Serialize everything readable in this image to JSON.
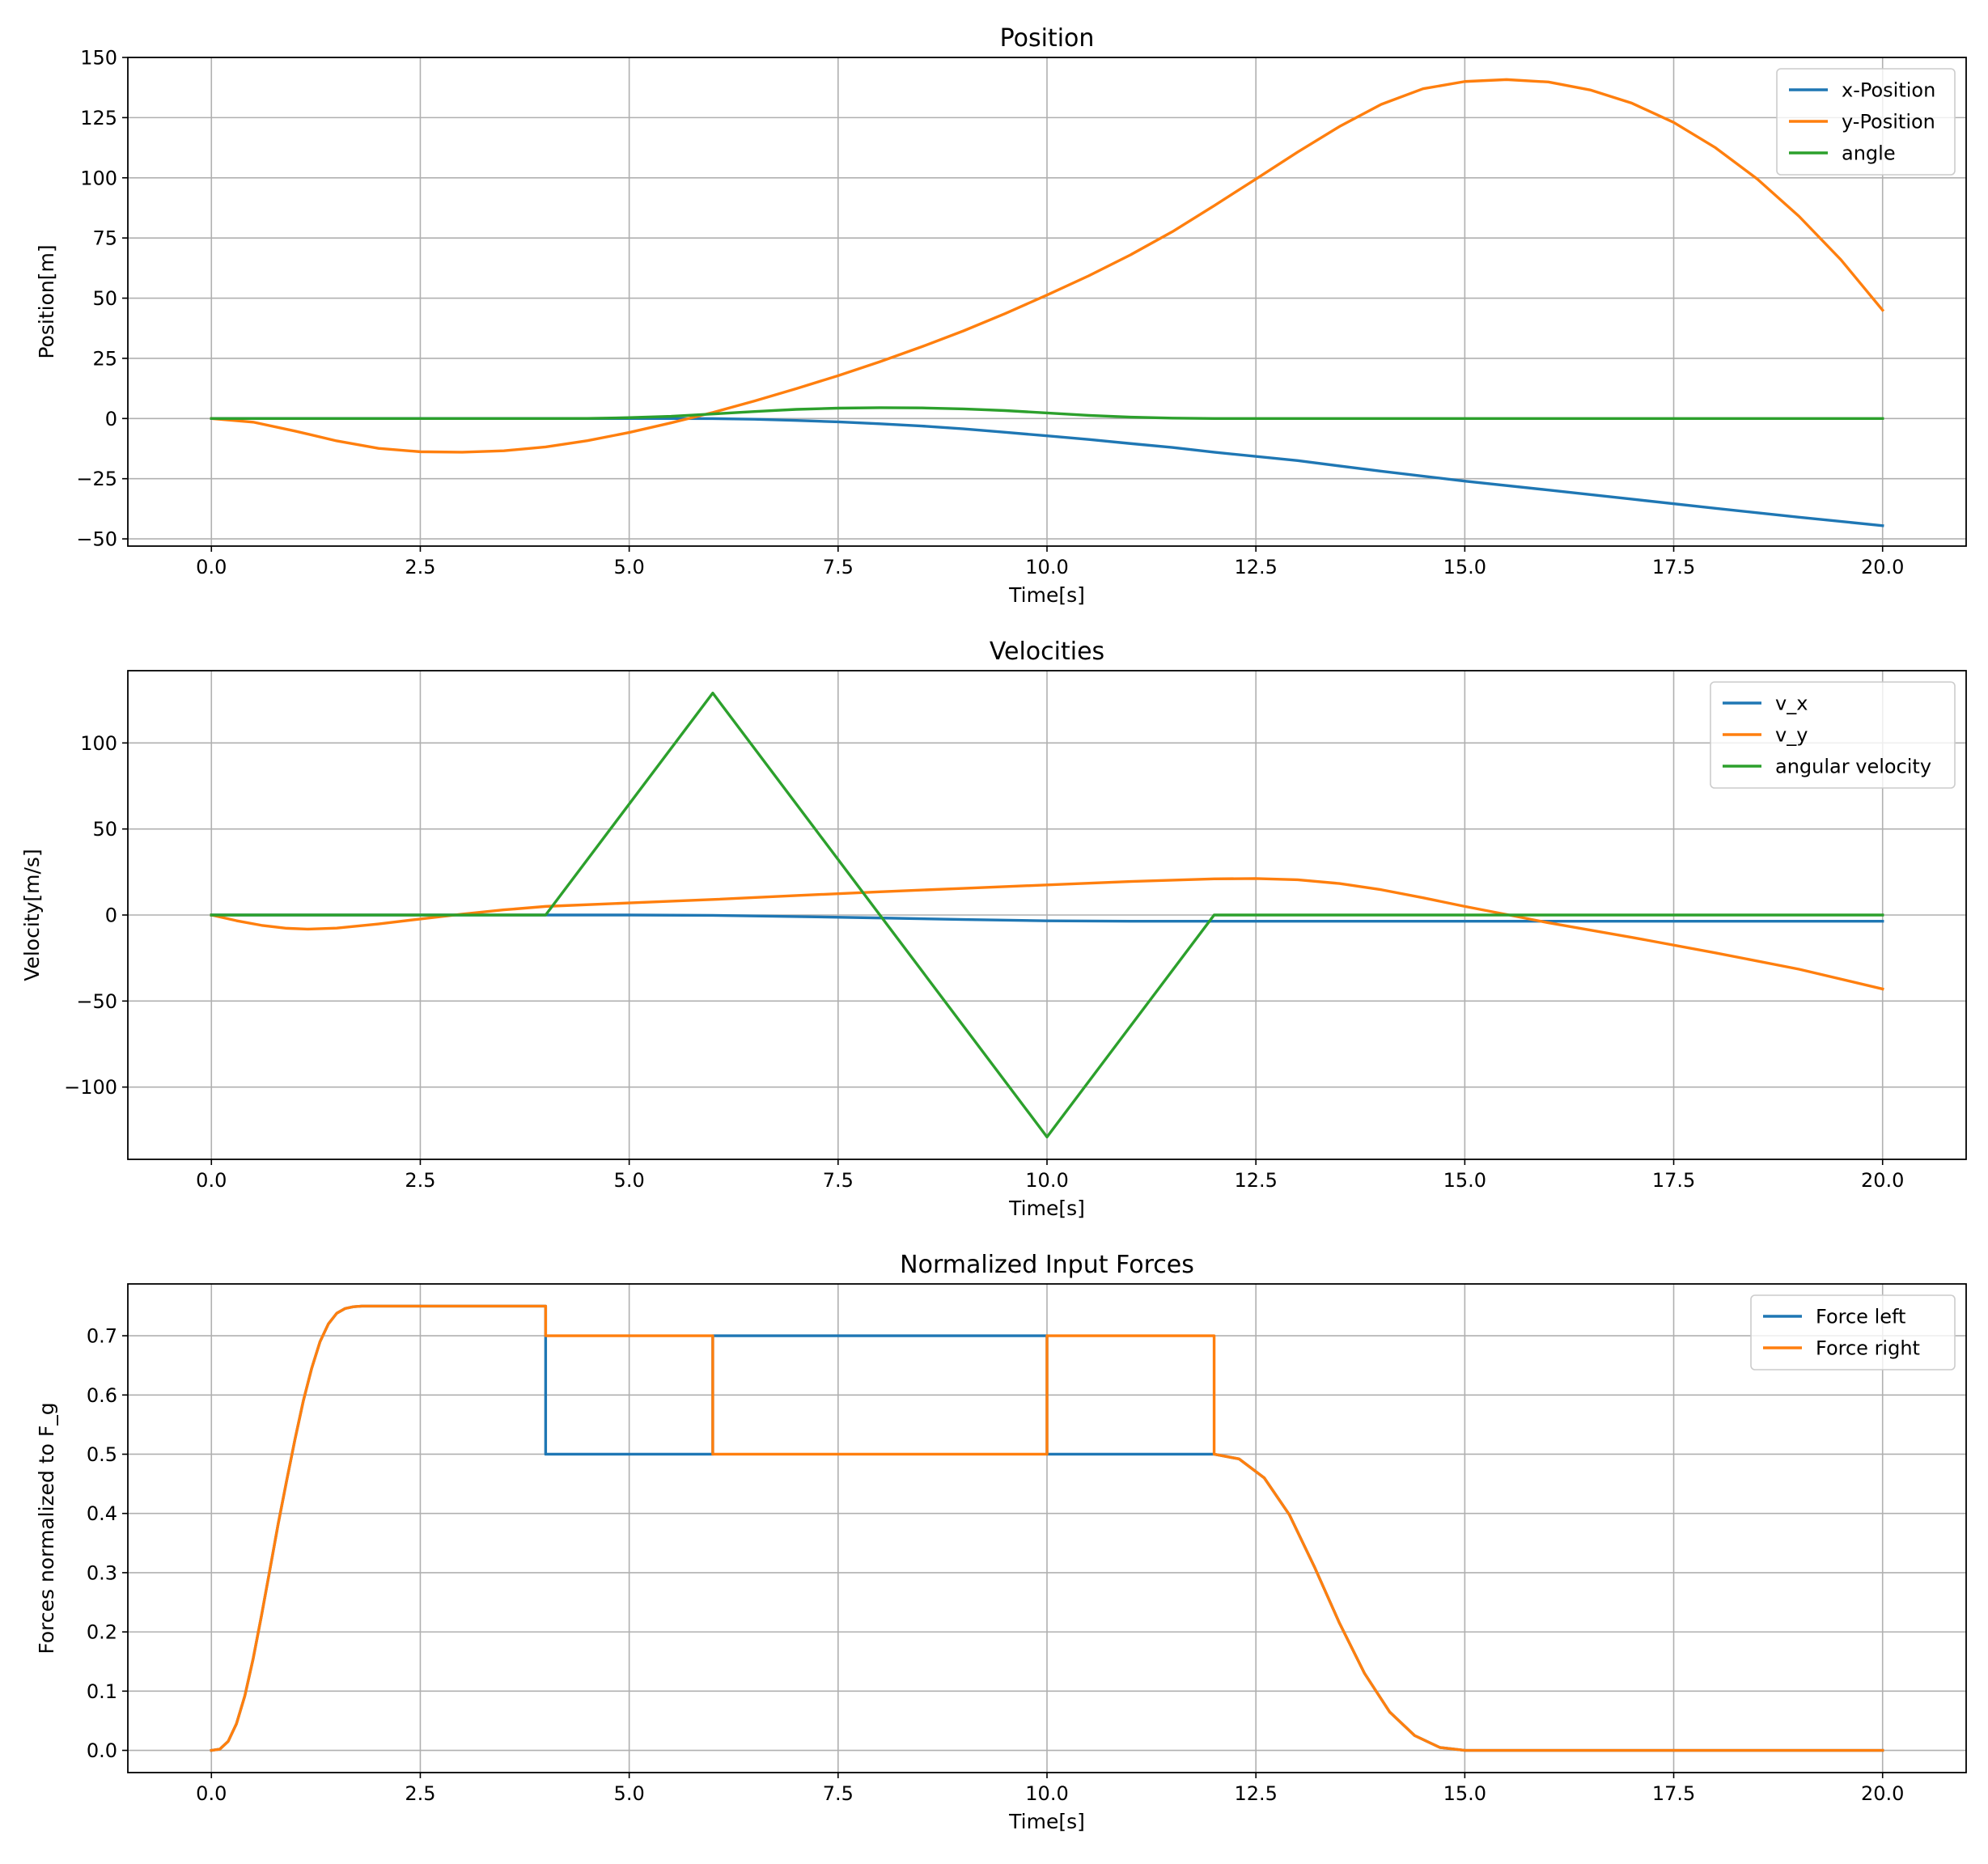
{
  "chart_data": [
    {
      "type": "line",
      "title": "Position",
      "xlabel": "Time[s]",
      "ylabel": "Position[m]",
      "xlim": [
        -1.0,
        21.0
      ],
      "ylim": [
        -53,
        150
      ],
      "xticks": [
        0,
        2.5,
        5,
        7.5,
        10,
        12.5,
        15,
        17.5,
        20
      ],
      "xtick_labels": [
        "0.0",
        "2.5",
        "5.0",
        "7.5",
        "10.0",
        "12.5",
        "15.0",
        "17.5",
        "20.0"
      ],
      "yticks": [
        -50,
        -25,
        0,
        25,
        50,
        75,
        100,
        125,
        150
      ],
      "ytick_labels": [
        "−50",
        "−25",
        "0",
        "25",
        "50",
        "75",
        "100",
        "125",
        "150"
      ],
      "grid": true,
      "legend": "top-right",
      "series": [
        {
          "name": "x-Position",
          "color": "#1f77b4",
          "x": [
            0,
            1,
            2,
            3,
            4,
            5,
            5.5,
            6,
            6.5,
            7,
            7.5,
            8,
            8.5,
            9,
            9.5,
            10,
            10.5,
            11,
            11.5,
            12,
            13,
            14,
            15,
            16,
            17,
            18,
            19,
            20
          ],
          "y": [
            0,
            0,
            0,
            0,
            0,
            0,
            0,
            -0.05,
            -0.3,
            -0.8,
            -1.4,
            -2.2,
            -3.1,
            -4.3,
            -5.7,
            -7.2,
            -8.7,
            -10.4,
            -12.0,
            -14.0,
            -17.5,
            -21.9,
            -26.0,
            -29.7,
            -33.5,
            -37.3,
            -41.0,
            -44.5
          ]
        },
        {
          "name": "y-Position",
          "color": "#ff7f0e",
          "x": [
            0,
            0.5,
            1,
            1.5,
            2,
            2.5,
            3,
            3.5,
            4,
            4.5,
            5,
            5.5,
            6,
            6.5,
            7,
            7.5,
            8,
            8.5,
            9,
            9.5,
            10,
            10.5,
            11,
            11.5,
            12,
            12.5,
            13,
            13.5,
            14,
            14.5,
            15,
            15.5,
            16,
            16.5,
            17,
            17.5,
            18,
            18.5,
            19,
            19.5,
            20
          ],
          "y": [
            0,
            -1.5,
            -5.2,
            -9.3,
            -12.4,
            -13.8,
            -14,
            -13.4,
            -11.8,
            -9.2,
            -5.8,
            -1.8,
            2.5,
            7.3,
            12.4,
            17.8,
            23.6,
            29.8,
            36.4,
            43.6,
            51.3,
            59.3,
            68,
            77.6,
            88.4,
            99.5,
            110.7,
            121.3,
            130.5,
            137.0,
            140.0,
            140.8,
            139.8,
            136.5,
            131.0,
            123.0,
            112.5,
            99.5,
            84.0,
            66.0,
            45.0
          ]
        },
        {
          "name": "angle",
          "color": "#2ca02c",
          "x": [
            0,
            4,
            4.5,
            5,
            5.5,
            6,
            6.5,
            7,
            7.5,
            8,
            8.5,
            9,
            9.5,
            10,
            10.5,
            11,
            11.5,
            12,
            20
          ],
          "y": [
            0,
            0,
            0.05,
            0.35,
            0.9,
            1.9,
            2.9,
            3.8,
            4.3,
            4.5,
            4.4,
            4.0,
            3.3,
            2.3,
            1.3,
            0.6,
            0.15,
            0,
            0
          ]
        }
      ]
    },
    {
      "type": "line",
      "title": "Velocities",
      "xlabel": "Time[s]",
      "ylabel": "Velocity[m/s]",
      "xlim": [
        -1.0,
        21.0
      ],
      "ylim": [
        -142,
        142
      ],
      "xticks": [
        0,
        2.5,
        5,
        7.5,
        10,
        12.5,
        15,
        17.5,
        20
      ],
      "xtick_labels": [
        "0.0",
        "2.5",
        "5.0",
        "7.5",
        "10.0",
        "12.5",
        "15.0",
        "17.5",
        "20.0"
      ],
      "yticks": [
        -100,
        -50,
        0,
        50,
        100
      ],
      "ytick_labels": [
        "−100",
        "−50",
        "0",
        "50",
        "100"
      ],
      "grid": true,
      "legend": "top-right",
      "series": [
        {
          "name": "v_x",
          "color": "#1f77b4",
          "x": [
            0,
            5,
            6,
            7,
            8,
            9,
            10,
            11,
            12,
            20
          ],
          "y": [
            0,
            0,
            -0.2,
            -0.9,
            -1.7,
            -2.6,
            -3.4,
            -3.6,
            -3.6,
            -3.6
          ]
        },
        {
          "name": "v_y",
          "color": "#ff7f0e",
          "x": [
            0,
            0.3,
            0.6,
            0.9,
            1.15,
            1.5,
            2,
            2.5,
            3,
            3.5,
            4,
            5,
            6,
            7,
            8,
            9,
            10,
            11,
            12,
            12.5,
            13,
            13.5,
            14,
            14.5,
            15,
            15.5,
            16,
            17,
            18,
            19,
            20
          ],
          "y": [
            0,
            -3.3,
            -6.0,
            -7.7,
            -8.2,
            -7.6,
            -5.2,
            -2.3,
            0.5,
            3.0,
            5.0,
            7.0,
            9.0,
            11.3,
            13.5,
            15.5,
            17.5,
            19.5,
            21.0,
            21.2,
            20.5,
            18.3,
            14.7,
            10.0,
            5.0,
            0.3,
            -4.5,
            -13.0,
            -22.0,
            -31.5,
            -43.0
          ]
        },
        {
          "name": "angular velocity",
          "color": "#2ca02c",
          "x": [
            0,
            4,
            6,
            10,
            12,
            20
          ],
          "y": [
            0,
            0,
            129,
            -129,
            0,
            0
          ]
        }
      ]
    },
    {
      "type": "line",
      "title": "Normalized Input Forces",
      "xlabel": "Time[s]",
      "ylabel": "Forces normalized to F_g",
      "xlim": [
        -1.0,
        21.0
      ],
      "ylim": [
        -0.0375,
        0.7875
      ],
      "xticks": [
        0,
        2.5,
        5,
        7.5,
        10,
        12.5,
        15,
        17.5,
        20
      ],
      "xtick_labels": [
        "0.0",
        "2.5",
        "5.0",
        "7.5",
        "10.0",
        "12.5",
        "15.0",
        "17.5",
        "20.0"
      ],
      "yticks": [
        0,
        0.1,
        0.2,
        0.3,
        0.4,
        0.5,
        0.6,
        0.7
      ],
      "ytick_labels": [
        "0.0",
        "0.1",
        "0.2",
        "0.3",
        "0.4",
        "0.5",
        "0.6",
        "0.7"
      ],
      "grid": true,
      "legend": "top-right",
      "series": [
        {
          "name": "Force left",
          "color": "#1f77b4",
          "x": [
            0,
            0.1,
            0.2,
            0.3,
            0.4,
            0.5,
            0.6,
            0.7,
            0.8,
            0.9,
            1.0,
            1.1,
            1.2,
            1.3,
            1.4,
            1.5,
            1.6,
            1.7,
            1.8,
            1.9,
            2.0,
            4.0,
            4.0,
            6.0,
            6.0,
            10.0,
            10.0,
            12.0,
            12.0,
            12.3,
            12.6,
            12.9,
            13.2,
            13.5,
            13.8,
            14.1,
            14.4,
            14.7,
            15.0,
            20.0
          ],
          "y": [
            0,
            0.002,
            0.015,
            0.045,
            0.092,
            0.155,
            0.228,
            0.305,
            0.383,
            0.455,
            0.525,
            0.59,
            0.645,
            0.69,
            0.72,
            0.738,
            0.746,
            0.749,
            0.75,
            0.75,
            0.75,
            0.75,
            0.5,
            0.5,
            0.7,
            0.7,
            0.5,
            0.5,
            0.5,
            0.492,
            0.46,
            0.398,
            0.31,
            0.215,
            0.13,
            0.065,
            0.025,
            0.005,
            0,
            0
          ]
        },
        {
          "name": "Force right",
          "color": "#ff7f0e",
          "x": [
            0,
            0.1,
            0.2,
            0.3,
            0.4,
            0.5,
            0.6,
            0.7,
            0.8,
            0.9,
            1.0,
            1.1,
            1.2,
            1.3,
            1.4,
            1.5,
            1.6,
            1.7,
            1.8,
            1.9,
            2.0,
            4.0,
            4.0,
            6.0,
            6.0,
            10.0,
            10.0,
            12.0,
            12.0,
            12.3,
            12.6,
            12.9,
            13.2,
            13.5,
            13.8,
            14.1,
            14.4,
            14.7,
            15.0,
            20.0
          ],
          "y": [
            0,
            0.002,
            0.015,
            0.045,
            0.092,
            0.155,
            0.228,
            0.305,
            0.383,
            0.455,
            0.525,
            0.59,
            0.645,
            0.69,
            0.72,
            0.738,
            0.746,
            0.749,
            0.75,
            0.75,
            0.75,
            0.75,
            0.7,
            0.7,
            0.5,
            0.5,
            0.7,
            0.7,
            0.5,
            0.492,
            0.46,
            0.398,
            0.31,
            0.215,
            0.13,
            0.065,
            0.025,
            0.005,
            0,
            0
          ]
        }
      ]
    }
  ]
}
